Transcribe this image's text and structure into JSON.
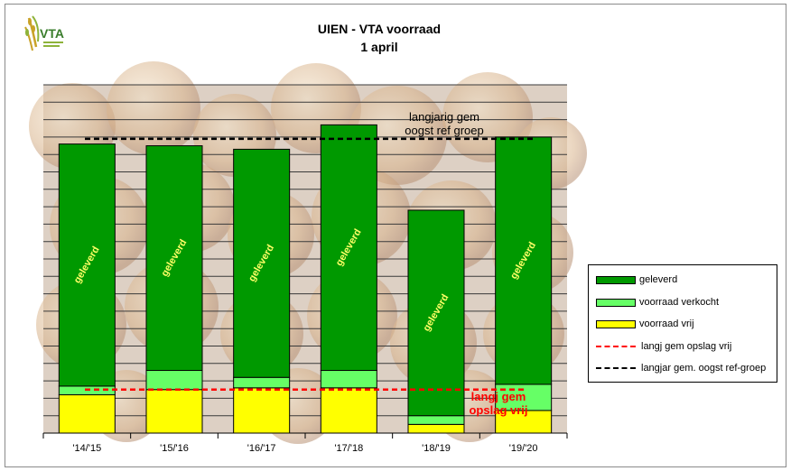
{
  "logo": {
    "text": "VTA",
    "icon": "vta-wheat-logo"
  },
  "chart_data": {
    "type": "bar",
    "stacked": true,
    "title": "UIEN - VTA voorraad",
    "subtitle": "1 april",
    "categories": [
      "'14/'15",
      "'15/'16",
      "'16/'17",
      "'17/'18",
      "'18/'19",
      "'19/'20"
    ],
    "series": [
      {
        "name": "voorraad vrij",
        "color": "#ffff00",
        "values": [
          11,
          12.5,
          13,
          13,
          2.5,
          6.5
        ]
      },
      {
        "name": "voorraad verkocht",
        "color": "#66ff66",
        "values": [
          2.5,
          5.5,
          3,
          5,
          2.5,
          7.5
        ]
      },
      {
        "name": "geleverd",
        "color": "#009900",
        "label": "geleverd",
        "values": [
          69.5,
          64.5,
          65.5,
          70.5,
          59,
          71
        ]
      }
    ],
    "reference_lines": [
      {
        "name": "langj gem opslag vrij",
        "value": 12.5,
        "color": "#ff0000",
        "annotation": [
          "langj gem",
          "opslag vrij"
        ]
      },
      {
        "name": "langjar gem. oogst ref-groep",
        "value": 84.5,
        "color": "#000000",
        "annotation": [
          "langjarig gem",
          "oogst ref groep"
        ]
      }
    ],
    "ylim": [
      0,
      100
    ],
    "grid": true,
    "legend": "right",
    "legend_entries": [
      "geleverd",
      "voorraad verkocht",
      "voorraad vrij",
      "langj gem opslag vrij",
      "langjar gem. oogst ref-groep"
    ]
  },
  "colors": {
    "background_photo": "#ddd0c4",
    "onion_tone": "#e8c9a0",
    "gridline": "#3a3a3a"
  }
}
